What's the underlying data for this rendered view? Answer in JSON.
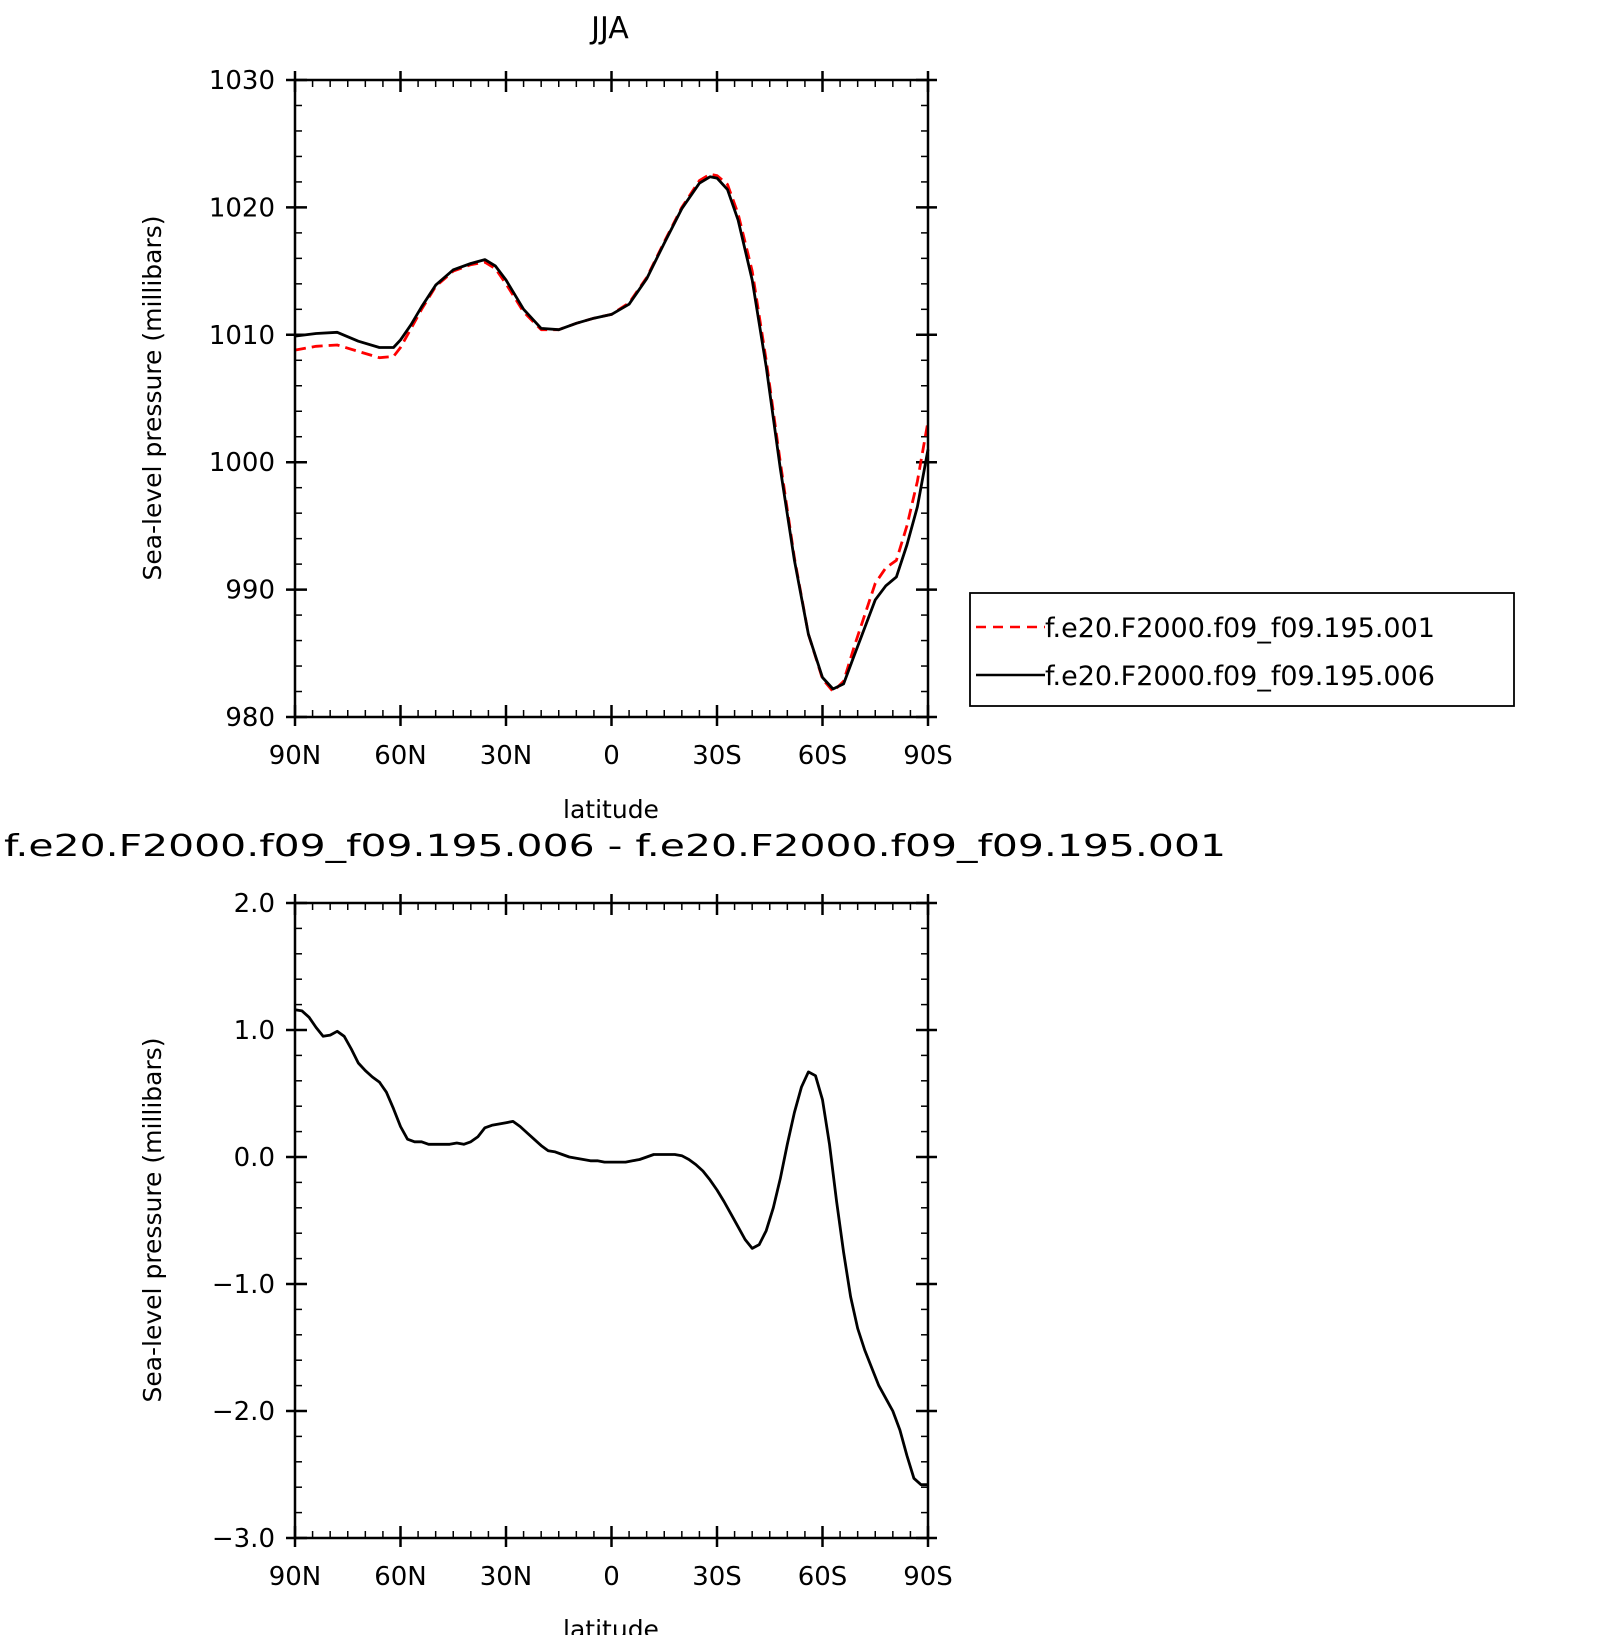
{
  "chart_data": [
    {
      "type": "line",
      "title": "JJA",
      "xlabel": "latitude",
      "ylabel": "Sea-level pressure (millibars)",
      "xlim": [
        90,
        -90
      ],
      "ylim": [
        980,
        1030
      ],
      "x_ticks": [
        90,
        60,
        30,
        0,
        -30,
        -60,
        -90
      ],
      "x_tick_labels": [
        "90N",
        "60N",
        "30N",
        "0",
        "30S",
        "60S",
        "90S"
      ],
      "y_ticks": [
        980,
        990,
        1000,
        1010,
        1020,
        1030
      ],
      "y_tick_labels": [
        "980",
        "990",
        "1000",
        "1010",
        "1020",
        "1030"
      ],
      "legend_position": "right",
      "series": [
        {
          "name": "f.e20.F2000.f09_f09.195.001",
          "color": "#ff0000",
          "style": "dashed",
          "x": [
            90,
            84,
            78,
            72,
            66,
            62,
            60,
            57,
            54,
            50,
            45,
            40,
            36,
            33,
            30,
            25,
            20,
            15,
            10,
            5,
            0,
            -5,
            -10,
            -15,
            -20,
            -25,
            -28,
            -30,
            -33,
            -36,
            -40,
            -44,
            -48,
            -52,
            -56,
            -60,
            -63,
            -66,
            -69,
            -72,
            -75,
            -78,
            -81,
            -84,
            -87,
            -90
          ],
          "y": [
            1008.8,
            1009.1,
            1009.2,
            1008.7,
            1008.2,
            1008.3,
            1009.0,
            1010.5,
            1012.0,
            1013.8,
            1015.0,
            1015.5,
            1015.7,
            1015.2,
            1014.0,
            1011.8,
            1010.4,
            1010.4,
            1010.9,
            1011.3,
            1011.6,
            1012.5,
            1014.5,
            1017.3,
            1020.0,
            1022.1,
            1022.6,
            1022.5,
            1021.8,
            1019.5,
            1015.0,
            1008.0,
            1000.0,
            992.5,
            986.5,
            983.0,
            982.0,
            982.8,
            985.5,
            988.0,
            990.5,
            991.7,
            992.3,
            995.0,
            998.5,
            1003.2
          ]
        },
        {
          "name": "f.e20.F2000.f09_f09.195.006",
          "color": "#000000",
          "style": "solid",
          "x": [
            90,
            84,
            78,
            72,
            66,
            62,
            60,
            57,
            54,
            50,
            45,
            40,
            36,
            33,
            30,
            25,
            20,
            15,
            10,
            5,
            0,
            -5,
            -10,
            -15,
            -20,
            -25,
            -28,
            -30,
            -33,
            -36,
            -40,
            -44,
            -48,
            -52,
            -56,
            -60,
            -63,
            -66,
            -69,
            -72,
            -75,
            -78,
            -81,
            -84,
            -87,
            -90
          ],
          "y": [
            1009.9,
            1010.1,
            1010.2,
            1009.5,
            1009.0,
            1009.0,
            1009.6,
            1010.8,
            1012.2,
            1013.9,
            1015.1,
            1015.6,
            1015.9,
            1015.4,
            1014.3,
            1012.0,
            1010.5,
            1010.4,
            1010.9,
            1011.3,
            1011.6,
            1012.4,
            1014.4,
            1017.2,
            1019.9,
            1021.9,
            1022.4,
            1022.3,
            1021.4,
            1019.0,
            1014.3,
            1007.5,
            999.5,
            992.3,
            986.5,
            983.1,
            982.2,
            982.6,
            984.8,
            987.0,
            989.2,
            990.3,
            991.0,
            993.5,
            996.5,
            1001.0
          ]
        }
      ]
    },
    {
      "type": "line",
      "title": "f.e20.F2000.f09_f09.195.006 - f.e20.F2000.f09_f09.195.001",
      "xlabel": "latitude",
      "ylabel": "Sea-level pressure (millibars)",
      "xlim": [
        90,
        -90
      ],
      "ylim": [
        -3.0,
        2.0
      ],
      "x_ticks": [
        90,
        60,
        30,
        0,
        -30,
        -60,
        -90
      ],
      "x_tick_labels": [
        "90N",
        "60N",
        "30N",
        "0",
        "30S",
        "60S",
        "90S"
      ],
      "y_ticks": [
        2.0,
        1.0,
        0.0,
        -1.0,
        -2.0,
        -3.0
      ],
      "y_tick_labels": [
        "2.0",
        "1.0",
        "0.0",
        "−1.0",
        "−2.0",
        "−3.0"
      ],
      "series": [
        {
          "color": "#000000",
          "style": "solid",
          "x": [
            90,
            88,
            86,
            84,
            82,
            80,
            78,
            76,
            74,
            72,
            70,
            68,
            66,
            64,
            62,
            60,
            58,
            56,
            54,
            52,
            50,
            48,
            46,
            44,
            42,
            40,
            38,
            36,
            34,
            32,
            30,
            28,
            26,
            24,
            22,
            20,
            18,
            16,
            14,
            12,
            10,
            8,
            6,
            4,
            2,
            0,
            -2,
            -4,
            -6,
            -8,
            -10,
            -12,
            -14,
            -16,
            -18,
            -20,
            -22,
            -24,
            -26,
            -28,
            -30,
            -32,
            -34,
            -36,
            -38,
            -40,
            -42,
            -44,
            -46,
            -48,
            -50,
            -52,
            -54,
            -56,
            -58,
            -60,
            -62,
            -64,
            -66,
            -68,
            -70,
            -72,
            -74,
            -76,
            -78,
            -80,
            -82,
            -84,
            -86,
            -88,
            -90
          ],
          "y": [
            1.16,
            1.15,
            1.1,
            1.02,
            0.95,
            0.96,
            0.99,
            0.95,
            0.85,
            0.74,
            0.68,
            0.63,
            0.59,
            0.51,
            0.38,
            0.24,
            0.14,
            0.12,
            0.12,
            0.1,
            0.1,
            0.1,
            0.1,
            0.11,
            0.1,
            0.12,
            0.16,
            0.23,
            0.25,
            0.26,
            0.27,
            0.28,
            0.24,
            0.19,
            0.14,
            0.09,
            0.05,
            0.04,
            0.02,
            0.0,
            -0.01,
            -0.02,
            -0.03,
            -0.03,
            -0.04,
            -0.04,
            -0.04,
            -0.04,
            -0.03,
            -0.02,
            0.0,
            0.02,
            0.02,
            0.02,
            0.02,
            0.01,
            -0.02,
            -0.06,
            -0.11,
            -0.18,
            -0.26,
            -0.35,
            -0.45,
            -0.55,
            -0.65,
            -0.72,
            -0.69,
            -0.58,
            -0.4,
            -0.17,
            0.1,
            0.35,
            0.55,
            0.67,
            0.64,
            0.45,
            0.1,
            -0.35,
            -0.75,
            -1.1,
            -1.35,
            -1.52,
            -1.66,
            -1.8,
            -1.9,
            -2.0,
            -2.15,
            -2.35,
            -2.53,
            -2.58,
            -2.58
          ]
        }
      ]
    }
  ]
}
